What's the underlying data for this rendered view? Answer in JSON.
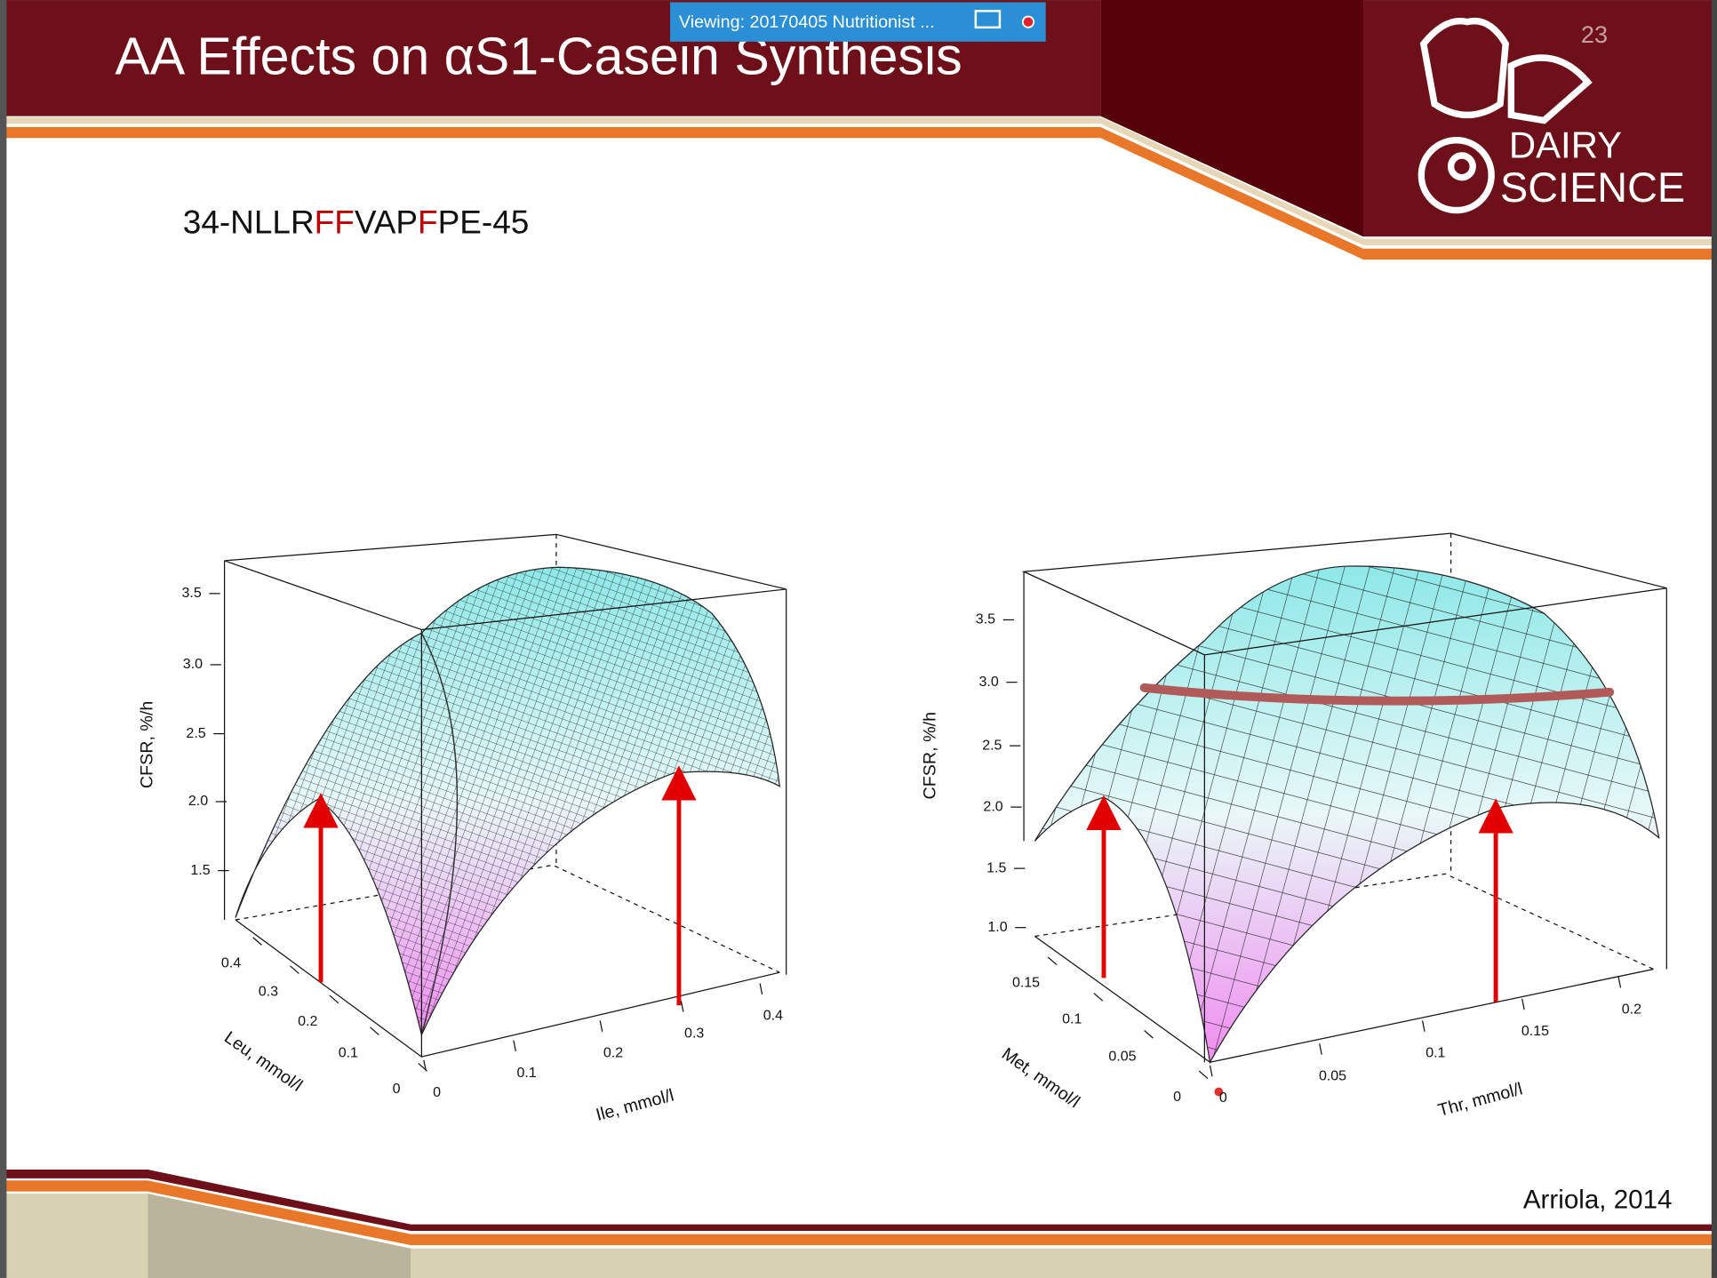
{
  "viewer_bar": {
    "text": "Viewing: 20170405 Nutritionist ..."
  },
  "slide": {
    "title": "AA Effects on αS1-Casein Synthesis",
    "page_number": "23",
    "logo": {
      "line1": "DAIRY",
      "line2": "SCIENCE"
    },
    "sequence": [
      "34-NLLR",
      "FF",
      "VAP",
      "F",
      "PE-45"
    ],
    "plots": [
      {
        "z_label": "CFSR, %/h",
        "z_ticks": [
          "3.5",
          "3.0",
          "2.5",
          "2.0",
          "1.5"
        ],
        "x_label": "Leu, mmol/l",
        "x_ticks": [
          "0.4",
          "0.3",
          "0.2",
          "0.1",
          "0"
        ],
        "y_label": "Ile, mmol/l",
        "y_ticks": [
          "0",
          "0.1",
          "0.2",
          "0.3",
          "0.4"
        ]
      },
      {
        "z_label": "CFSR, %/h",
        "z_ticks": [
          "3.5",
          "3.0",
          "2.5",
          "2.0",
          "1.5",
          "1.0"
        ],
        "x_label": "Met, mmol/l",
        "x_ticks": [
          "0.15",
          "0.1",
          "0.05",
          "0"
        ],
        "y_label": "Thr, mmol/l",
        "y_ticks": [
          "0",
          "0.05",
          "0.1",
          "0.15",
          "0.2"
        ]
      }
    ],
    "citation": "Arriola, 2014"
  }
}
